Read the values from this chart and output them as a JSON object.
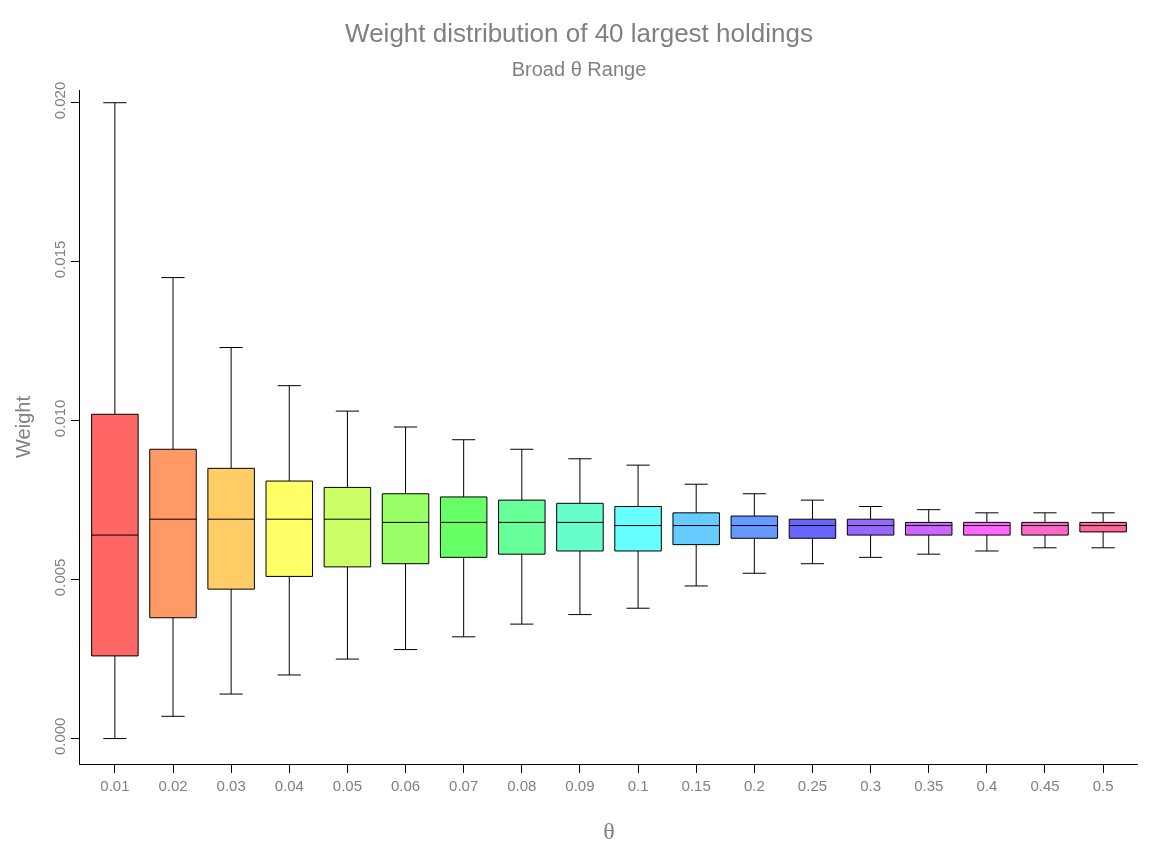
{
  "chart_data": {
    "type": "box",
    "title": "Weight distribution of 40 largest holdings",
    "subtitle": "Broad θ Range",
    "xlabel": "θ",
    "ylabel": "Weight",
    "categories": [
      "0.01",
      "0.02",
      "0.03",
      "0.04",
      "0.05",
      "0.06",
      "0.07",
      "0.08",
      "0.09",
      "0.1",
      "0.15",
      "0.2",
      "0.25",
      "0.3",
      "0.35",
      "0.4",
      "0.45",
      "0.5"
    ],
    "colors": [
      "#ff6666",
      "#ff9966",
      "#ffcc66",
      "#ffff66",
      "#ccff66",
      "#99ff66",
      "#66ff66",
      "#66ff99",
      "#66ffcc",
      "#66ffff",
      "#66ccff",
      "#6699ff",
      "#6666ff",
      "#9966ff",
      "#cc66ff",
      "#ff66ff",
      "#ff66cc",
      "#ff6699"
    ],
    "boxes": [
      {
        "low": 0.0,
        "q1": 0.0026,
        "median": 0.0064,
        "q3": 0.0102,
        "high": 0.02
      },
      {
        "low": 0.0007,
        "q1": 0.0038,
        "median": 0.0069,
        "q3": 0.0091,
        "high": 0.0145
      },
      {
        "low": 0.0014,
        "q1": 0.0047,
        "median": 0.0069,
        "q3": 0.0085,
        "high": 0.0123
      },
      {
        "low": 0.002,
        "q1": 0.0051,
        "median": 0.0069,
        "q3": 0.0081,
        "high": 0.0111
      },
      {
        "low": 0.0025,
        "q1": 0.0054,
        "median": 0.0069,
        "q3": 0.0079,
        "high": 0.0103
      },
      {
        "low": 0.0028,
        "q1": 0.0055,
        "median": 0.0068,
        "q3": 0.0077,
        "high": 0.0098
      },
      {
        "low": 0.0032,
        "q1": 0.0057,
        "median": 0.0068,
        "q3": 0.0076,
        "high": 0.0094
      },
      {
        "low": 0.0036,
        "q1": 0.0058,
        "median": 0.0068,
        "q3": 0.0075,
        "high": 0.0091
      },
      {
        "low": 0.0039,
        "q1": 0.0059,
        "median": 0.0068,
        "q3": 0.0074,
        "high": 0.0088
      },
      {
        "low": 0.0041,
        "q1": 0.0059,
        "median": 0.0067,
        "q3": 0.0073,
        "high": 0.0086
      },
      {
        "low": 0.0048,
        "q1": 0.0061,
        "median": 0.0067,
        "q3": 0.0071,
        "high": 0.008
      },
      {
        "low": 0.0052,
        "q1": 0.0063,
        "median": 0.0067,
        "q3": 0.007,
        "high": 0.0077
      },
      {
        "low": 0.0055,
        "q1": 0.0063,
        "median": 0.0067,
        "q3": 0.0069,
        "high": 0.0075
      },
      {
        "low": 0.0057,
        "q1": 0.0064,
        "median": 0.0067,
        "q3": 0.0069,
        "high": 0.0073
      },
      {
        "low": 0.0058,
        "q1": 0.0064,
        "median": 0.0067,
        "q3": 0.0068,
        "high": 0.0072
      },
      {
        "low": 0.0059,
        "q1": 0.0064,
        "median": 0.0067,
        "q3": 0.0068,
        "high": 0.0071
      },
      {
        "low": 0.006,
        "q1": 0.0064,
        "median": 0.0067,
        "q3": 0.0068,
        "high": 0.0071
      },
      {
        "low": 0.006,
        "q1": 0.0065,
        "median": 0.0067,
        "q3": 0.0068,
        "high": 0.0071
      }
    ],
    "ylim": [
      -0.0008,
      0.0204
    ],
    "yticks": [
      {
        "value": 0,
        "label": "0.000"
      },
      {
        "value": 0.005,
        "label": "0.005"
      },
      {
        "value": 0.01,
        "label": "0.010"
      },
      {
        "value": 0.015,
        "label": "0.015"
      },
      {
        "value": 0.02,
        "label": "0.020"
      }
    ],
    "grid": false
  }
}
